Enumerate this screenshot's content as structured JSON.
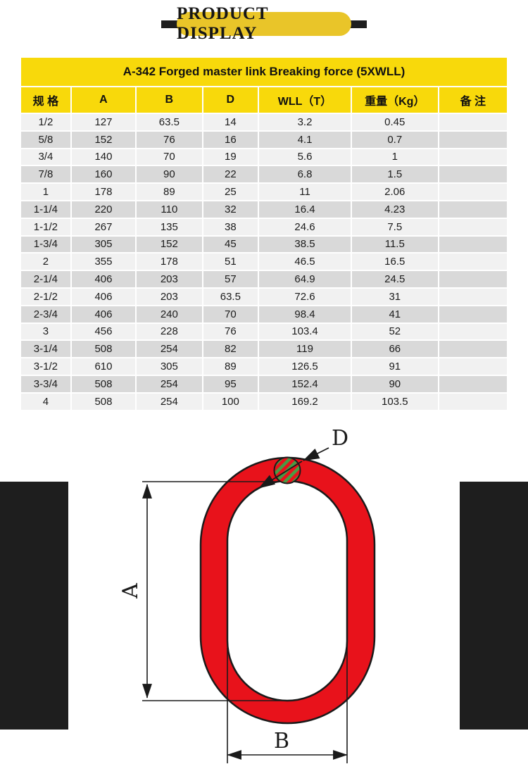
{
  "banner": {
    "title": "PRODUCT DISPLAY"
  },
  "table": {
    "title": "A-342 Forged master link  Breaking force (5XWLL)",
    "columns": [
      "规 格",
      "A",
      "B",
      "D",
      "WLL（T）",
      "重量（Kg）",
      "备 注"
    ],
    "rows": [
      [
        "1/2",
        "127",
        "63.5",
        "14",
        "3.2",
        "0.45",
        ""
      ],
      [
        "5/8",
        "152",
        "76",
        "16",
        "4.1",
        "0.7",
        ""
      ],
      [
        "3/4",
        "140",
        "70",
        "19",
        "5.6",
        "1",
        ""
      ],
      [
        "7/8",
        "160",
        "90",
        "22",
        "6.8",
        "1.5",
        ""
      ],
      [
        "1",
        "178",
        "89",
        "25",
        "11",
        "2.06",
        ""
      ],
      [
        "1-1/4",
        "220",
        "110",
        "32",
        "16.4",
        "4.23",
        ""
      ],
      [
        "1-1/2",
        "267",
        "135",
        "38",
        "24.6",
        "7.5",
        ""
      ],
      [
        "1-3/4",
        "305",
        "152",
        "45",
        "38.5",
        "11.5",
        ""
      ],
      [
        "2",
        "355",
        "178",
        "51",
        "46.5",
        "16.5",
        ""
      ],
      [
        "2-1/4",
        "406",
        "203",
        "57",
        "64.9",
        "24.5",
        ""
      ],
      [
        "2-1/2",
        "406",
        "203",
        "63.5",
        "72.6",
        "31",
        ""
      ],
      [
        "2-3/4",
        "406",
        "240",
        "70",
        "98.4",
        "41",
        ""
      ],
      [
        "3",
        "456",
        "228",
        "76",
        "103.4",
        "52",
        ""
      ],
      [
        "3-1/4",
        "508",
        "254",
        "82",
        "119",
        "66",
        ""
      ],
      [
        "3-1/2",
        "610",
        "305",
        "89",
        "126.5",
        "91",
        ""
      ],
      [
        "3-3/4",
        "508",
        "254",
        "95",
        "152.4",
        "90",
        ""
      ],
      [
        "4",
        "508",
        "254",
        "100",
        "169.2",
        "103.5",
        ""
      ]
    ]
  },
  "diagram": {
    "label_a": "A",
    "label_b": "B",
    "label_d": "D"
  },
  "colors": {
    "pill_yellow": "#E9C529",
    "table_yellow": "#F8D90B",
    "row_light": "#F1F1F1",
    "row_dark": "#D9D9D9",
    "ring_red": "#E8121B",
    "hatch_green": "#4A9B44",
    "bar_black": "#1E1E1E",
    "line_color": "#1A1A1A"
  }
}
